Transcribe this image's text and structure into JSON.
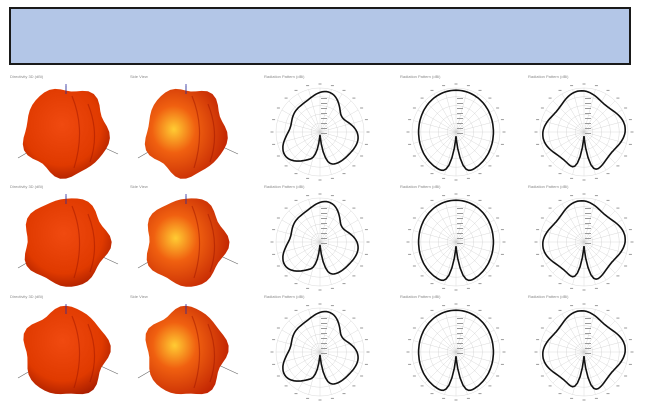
{
  "banner": {
    "color": "#b3c6e7",
    "text": ""
  },
  "figure": {
    "rows": [
      {
        "titles": [
          "Directivity 3D (dBi)",
          "Side View",
          "Radiation Pattern (dBi)",
          "Radiation Pattern (dBi)",
          "Radiation Pattern (dBi)"
        ]
      },
      {
        "titles": [
          "Directivity 3D (dBi)",
          "Side View",
          "Radiation Pattern (dBi)",
          "Radiation Pattern (dBi)",
          "Radiation Pattern (dBi)"
        ]
      },
      {
        "titles": [
          "Directivity 3D (dBi)",
          "Side View",
          "Radiation Pattern (dBi)",
          "Radiation Pattern (dBi)",
          "Radiation Pattern (dBi)"
        ]
      }
    ],
    "colors": {
      "surface_dark": "#b81800",
      "surface_mid": "#e03a00",
      "surface_hot": "#ffcc33",
      "polar_line": "#111111",
      "polar_grid": "#cfcfcf"
    },
    "icons": [
      "3d-pattern-icon",
      "side-view-pattern-icon",
      "polar-pattern-icon"
    ]
  }
}
